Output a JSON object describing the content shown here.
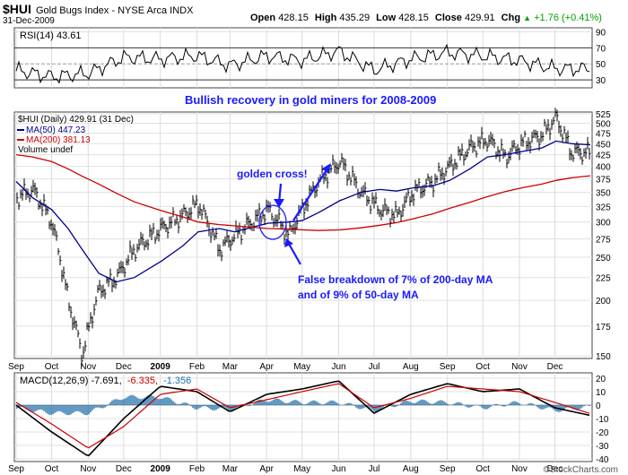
{
  "header": {
    "symbol": "$HUI",
    "name": "Gold Bugs Index - NYSE Arca INDX",
    "date": "31-Dec-2009",
    "open_label": "Open",
    "open": "428.15",
    "high_label": "High",
    "high": "435.29",
    "low_label": "Low",
    "low": "428.15",
    "close_label": "Close",
    "close": "429.91",
    "chg_label": "Chg",
    "chg": "+1.76 (+0.41%)",
    "chg_arrow": "▲",
    "watermark": "©StockCharts.com",
    "colors": {
      "up": "#00a000",
      "accent": "#0000cc",
      "ma200": "#cc0000"
    }
  },
  "rsi_panel": {
    "label": "RSI(14) 43.61",
    "ticks": [
      30,
      50,
      70,
      90
    ],
    "tick_labels": [
      "30",
      "50",
      "70",
      "90"
    ],
    "annotation": "Bullish recovery in gold miners for 2008-2009"
  },
  "price_panel": {
    "legend": {
      "price": "$HUI (Daily) 429.91 (31 Dec)",
      "ma50": "MA(50) 447.23",
      "ma200": "MA(200) 381.13",
      "volume": "Volume undef"
    },
    "annotations": {
      "golden_cross": "golden cross!",
      "false_breakdown_1": "False breakdown of 7% of 200-day MA",
      "false_breakdown_2": "and of 9% of 50-day MA"
    }
  },
  "macd_panel": {
    "label": "MACD(12,26,9) -7.691, -6.335, -1.356",
    "label_parts": [
      "MACD(12,26,9) -7.691,",
      "-6.335,",
      "-1.356"
    ],
    "ticks": [
      -40,
      -30,
      -20,
      -10,
      0,
      10,
      20
    ],
    "tick_labels": [
      "-40",
      "-30",
      "-20",
      "-10",
      "0",
      "10",
      "20"
    ]
  },
  "x_axis": {
    "months": [
      "Sep",
      "Oct",
      "Nov",
      "Dec",
      "2009",
      "Feb",
      "Mar",
      "Apr",
      "May",
      "Jun",
      "Jul",
      "Aug",
      "Sep",
      "Oct",
      "Nov",
      "Dec"
    ]
  },
  "chart_data": [
    {
      "type": "line",
      "name": "RSI(14)",
      "x": [
        "2008-09",
        "2008-10",
        "2008-11",
        "2008-12",
        "2009-01",
        "2009-02",
        "2009-03",
        "2009-04",
        "2009-05",
        "2009-06",
        "2009-07",
        "2009-08",
        "2009-09",
        "2009-10",
        "2009-11",
        "2009-12",
        "2009-12-31"
      ],
      "values": [
        42,
        34,
        38,
        58,
        56,
        60,
        48,
        60,
        54,
        66,
        42,
        56,
        64,
        60,
        54,
        44,
        43.61
      ],
      "ylim": [
        20,
        95
      ]
    },
    {
      "type": "line",
      "name": "$HUI (Daily)",
      "log_scale": true,
      "x": [
        "2008-09-01",
        "2008-09-15",
        "2008-10-01",
        "2008-10-15",
        "2008-10-27",
        "2008-11-10",
        "2008-11-25",
        "2008-12-10",
        "2009-01-02",
        "2009-01-20",
        "2009-02-02",
        "2009-02-20",
        "2009-03-05",
        "2009-03-20",
        "2009-04-02",
        "2009-04-20",
        "2009-05-01",
        "2009-05-15",
        "2009-06-02",
        "2009-06-20",
        "2009-07-06",
        "2009-07-20",
        "2009-08-03",
        "2009-08-20",
        "2009-09-03",
        "2009-09-20",
        "2009-10-05",
        "2009-10-20",
        "2009-11-03",
        "2009-11-20",
        "2009-12-02",
        "2009-12-15",
        "2009-12-31"
      ],
      "series": [
        {
          "name": "$HUI (Daily)",
          "values": [
            340,
            355,
            300,
            200,
            150,
            210,
            225,
            260,
            290,
            310,
            330,
            260,
            280,
            300,
            320,
            280,
            320,
            370,
            410,
            350,
            320,
            310,
            350,
            370,
            400,
            440,
            460,
            420,
            450,
            470,
            515,
            430,
            429.91
          ]
        },
        {
          "name": "MA(50)",
          "values": [
            370,
            340,
            320,
            290,
            260,
            230,
            220,
            225,
            245,
            265,
            285,
            290,
            285,
            292,
            298,
            300,
            302,
            315,
            335,
            350,
            355,
            352,
            358,
            362,
            372,
            395,
            420,
            425,
            432,
            440,
            456,
            450,
            447.23
          ]
        },
        {
          "name": "MA(200)",
          "values": [
            425,
            420,
            410,
            395,
            380,
            365,
            348,
            333,
            318,
            308,
            300,
            296,
            294,
            292,
            290,
            289,
            288,
            287,
            288,
            291,
            295,
            299,
            305,
            313,
            322,
            332,
            342,
            351,
            358,
            365,
            372,
            377,
            381.13
          ]
        }
      ],
      "ylim": [
        148,
        530
      ]
    },
    {
      "type": "line",
      "name": "MACD(12,26,9)",
      "x": [
        "2008-09",
        "2008-10",
        "2008-11",
        "2008-12",
        "2009-01",
        "2009-02",
        "2009-03",
        "2009-04",
        "2009-05",
        "2009-06",
        "2009-07",
        "2009-08",
        "2009-09",
        "2009-10",
        "2009-11",
        "2009-12",
        "2009-12-31"
      ],
      "series": [
        {
          "name": "MACD",
          "values": [
            0,
            -20,
            -38,
            -10,
            14,
            10,
            -5,
            8,
            12,
            18,
            -6,
            8,
            16,
            10,
            12,
            -2,
            -7.691
          ]
        },
        {
          "name": "Signal",
          "values": [
            2,
            -14,
            -32,
            -16,
            8,
            12,
            -2,
            4,
            10,
            16,
            -2,
            5,
            14,
            12,
            10,
            2,
            -6.335
          ]
        },
        {
          "name": "Histogram",
          "values": [
            -2,
            -6,
            -6,
            6,
            6,
            -2,
            -3,
            4,
            2,
            2,
            -4,
            3,
            2,
            -2,
            2,
            -4,
            -1.356
          ]
        }
      ],
      "ylim": [
        -42,
        24
      ]
    }
  ]
}
